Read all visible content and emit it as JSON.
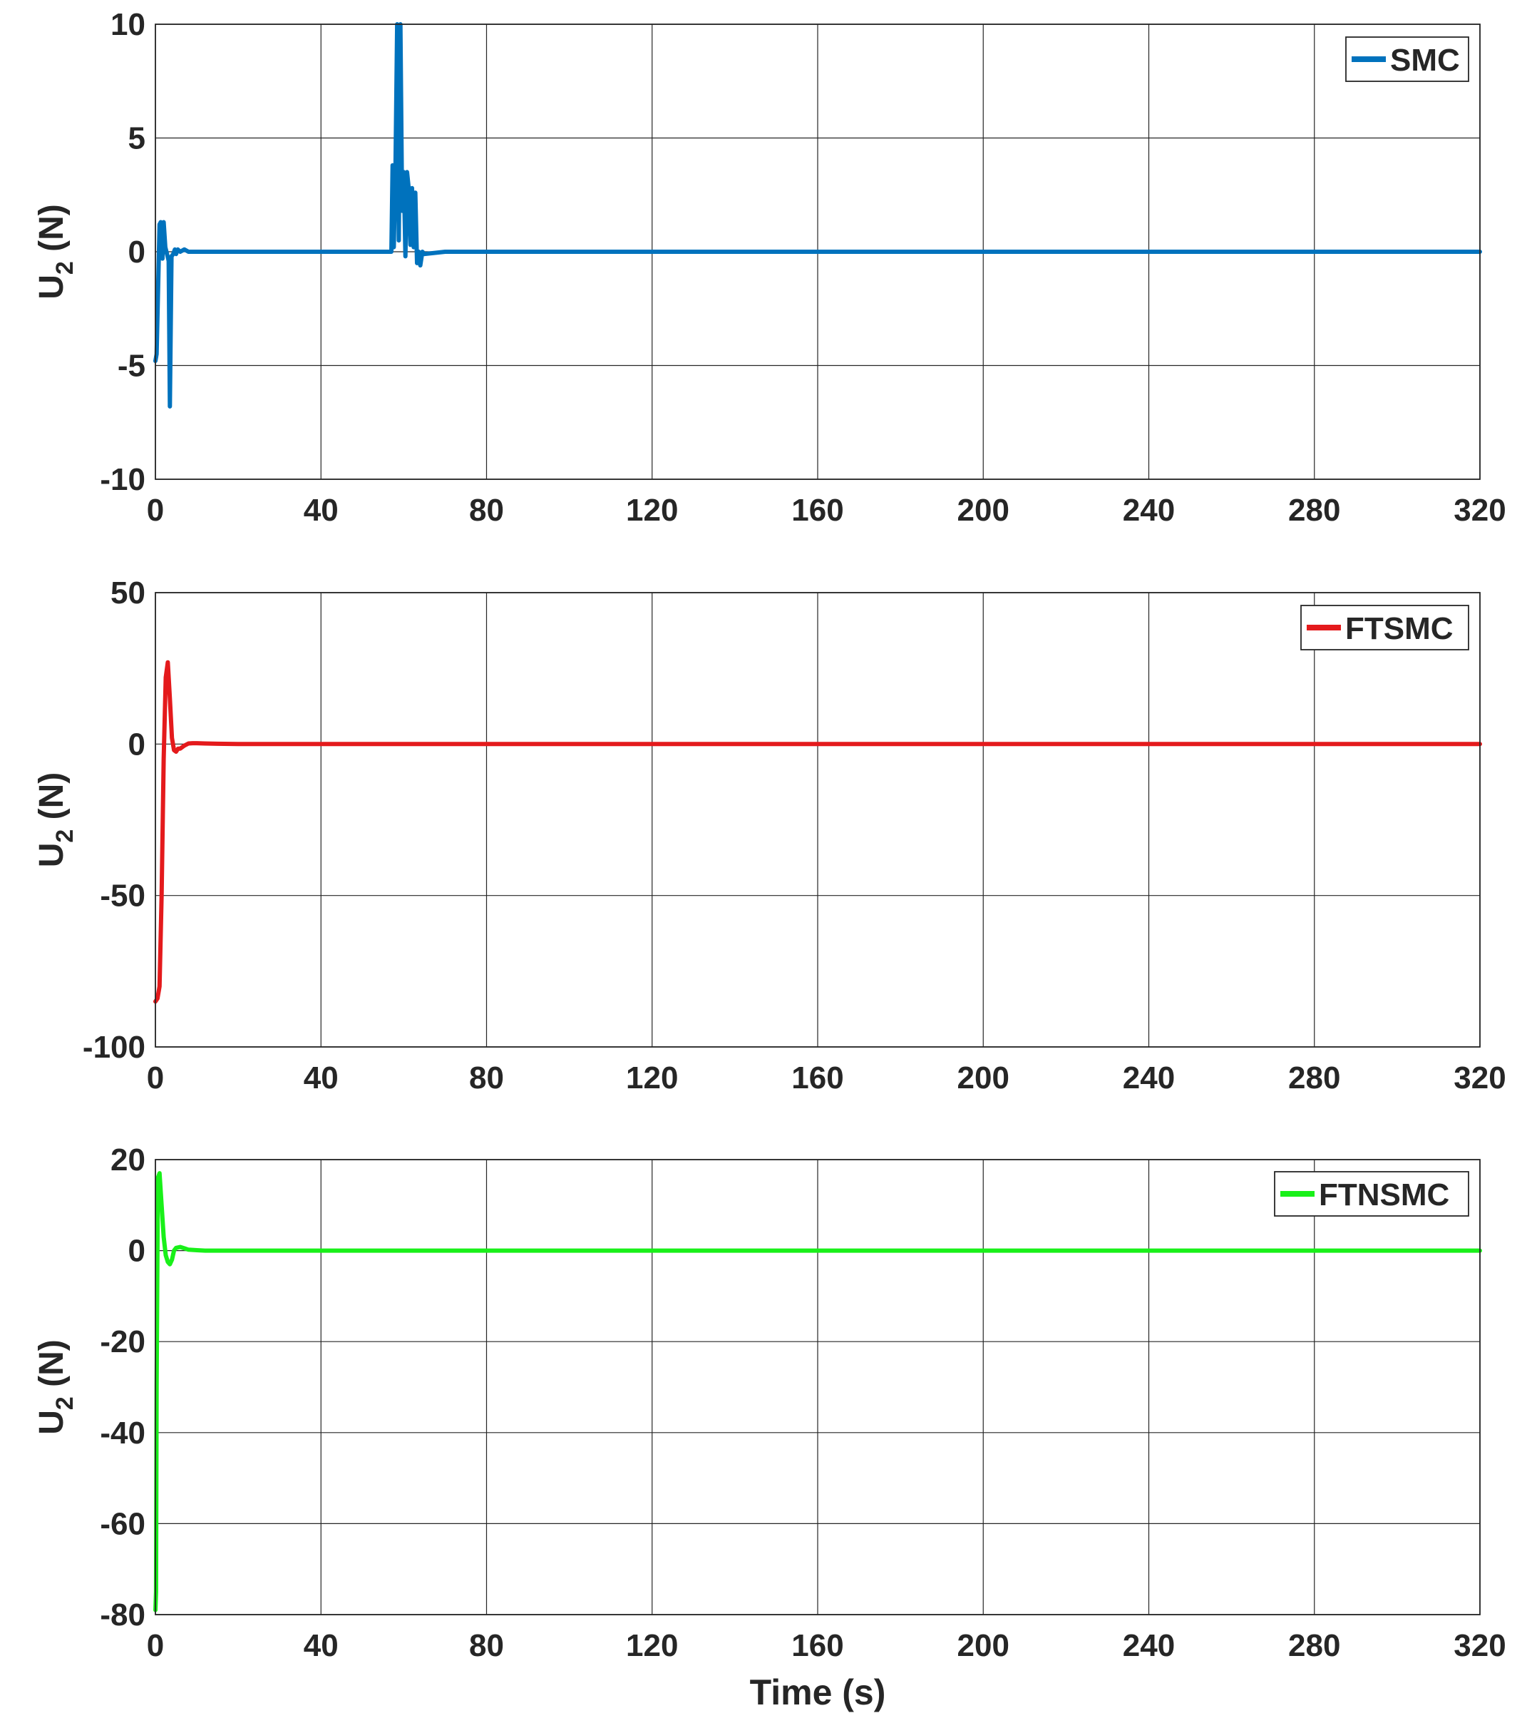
{
  "chart_data": [
    {
      "type": "line",
      "title": "",
      "xlabel": "",
      "ylabel": "U",
      "ylabel_sub": "2",
      "ylabel_unit": "(N)",
      "xlim": [
        0,
        320
      ],
      "ylim": [
        -10,
        10
      ],
      "xticks": [
        0,
        40,
        80,
        120,
        160,
        200,
        240,
        280,
        320
      ],
      "yticks": [
        -10,
        -5,
        0,
        5,
        10
      ],
      "grid": true,
      "legend_position": "top-right",
      "series": [
        {
          "name": "SMC",
          "color": "#0072BD",
          "x": [
            0,
            0.3,
            0.6,
            1.0,
            1.3,
            1.7,
            2.0,
            2.4,
            2.8,
            3.2,
            3.5,
            3.9,
            4.3,
            4.7,
            5.0,
            5.4,
            6.0,
            7.0,
            8.0,
            9.0,
            10,
            12,
            15,
            20,
            30,
            40,
            50,
            57.0,
            57.3,
            57.6,
            58.0,
            58.4,
            58.8,
            59.2,
            59.6,
            60.0,
            60.4,
            60.8,
            61.2,
            61.6,
            62.0,
            62.4,
            62.8,
            63.2,
            63.6,
            64.0,
            64.5,
            65,
            70,
            80,
            120,
            160,
            200,
            240,
            280,
            320
          ],
          "y": [
            -4.8,
            -4.5,
            -2.0,
            1.2,
            1.3,
            -0.3,
            1.3,
            0.2,
            -0.1,
            -0.4,
            -6.8,
            -0.2,
            -0.1,
            0.1,
            -0.1,
            0.1,
            0.0,
            0.1,
            0.0,
            0.0,
            0.0,
            0.0,
            0.0,
            0.0,
            0.0,
            0.0,
            0.0,
            0.0,
            3.8,
            0.2,
            3.8,
            10,
            0.5,
            10,
            1.8,
            3.5,
            -0.2,
            3.5,
            2.8,
            0.3,
            2.8,
            0.2,
            2.6,
            -0.5,
            0.0,
            -0.6,
            0.0,
            -0.1,
            0.0,
            0.0,
            0.0,
            0.0,
            0.0,
            0.0,
            0.0,
            0.0
          ]
        }
      ]
    },
    {
      "type": "line",
      "title": "",
      "xlabel": "",
      "ylabel": "U",
      "ylabel_sub": "2",
      "ylabel_unit": "(N)",
      "xlim": [
        0,
        320
      ],
      "ylim": [
        -100,
        50
      ],
      "xticks": [
        0,
        40,
        80,
        120,
        160,
        200,
        240,
        280,
        320
      ],
      "yticks": [
        -100,
        -50,
        0,
        50
      ],
      "grid": true,
      "legend_position": "top-right",
      "series": [
        {
          "name": "FTSMC",
          "color": "#E41A1C",
          "x": [
            0,
            0.5,
            1.0,
            1.5,
            2.0,
            2.5,
            3.0,
            3.5,
            4.0,
            4.5,
            5.0,
            5.5,
            6.0,
            7.0,
            8.0,
            9.0,
            10,
            12,
            15,
            20,
            40,
            80,
            120,
            160,
            200,
            240,
            280,
            320
          ],
          "y": [
            -85,
            -84,
            -80,
            -50,
            -5,
            22,
            27,
            15,
            2,
            -2,
            -2.5,
            -1.5,
            -1.5,
            -0.5,
            0.2,
            0.3,
            0.3,
            0.2,
            0.1,
            0.0,
            0.0,
            0.0,
            0.0,
            0.0,
            0.0,
            0.0,
            0.0,
            0.0
          ]
        }
      ]
    },
    {
      "type": "line",
      "title": "",
      "xlabel": "Time (s)",
      "ylabel": "U",
      "ylabel_sub": "2",
      "ylabel_unit": "(N)",
      "xlim": [
        0,
        320
      ],
      "ylim": [
        -80,
        20
      ],
      "xticks": [
        0,
        40,
        80,
        120,
        160,
        200,
        240,
        280,
        320
      ],
      "yticks": [
        -80,
        -60,
        -40,
        -20,
        0,
        20
      ],
      "grid": true,
      "legend_position": "top-right",
      "series": [
        {
          "name": "FTNSMC",
          "color": "#19F019",
          "x": [
            0,
            0.15,
            0.3,
            0.6,
            1.0,
            1.5,
            2.0,
            2.5,
            3.0,
            3.5,
            4.0,
            4.5,
            5.0,
            6.0,
            7.0,
            8.0,
            10,
            12,
            15,
            20,
            40,
            80,
            120,
            160,
            200,
            240,
            280,
            320
          ],
          "y": [
            -79,
            -75,
            -30,
            16,
            17,
            10,
            3,
            -1,
            -2.5,
            -3,
            -2,
            0,
            0.6,
            0.8,
            0.5,
            0.2,
            0.1,
            0.0,
            0.0,
            0.0,
            0.0,
            0.0,
            0.0,
            0.0,
            0.0,
            0.0,
            0.0,
            0.0
          ]
        }
      ]
    }
  ]
}
